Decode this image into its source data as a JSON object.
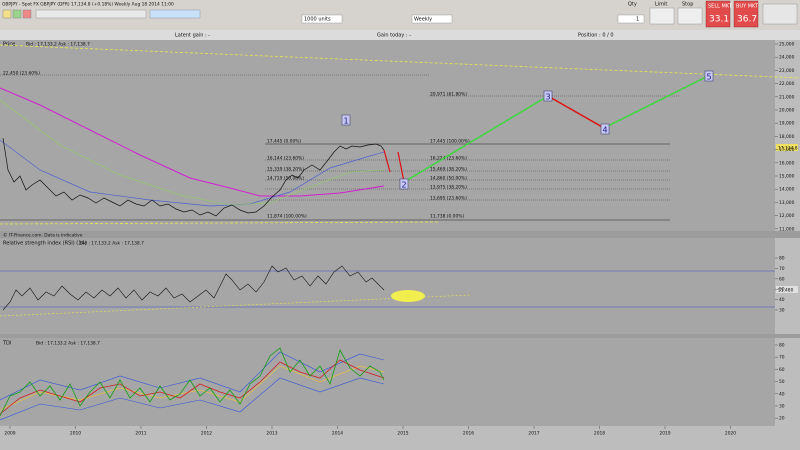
{
  "header": {
    "info": "GBPJPY - Spot FX GBPJPY (DFR)   17,134.8 (+0.18%)   Weekly  Aug 18 2014 11:00"
  },
  "toolbar": {
    "units": "1000 units",
    "period": "Weekly",
    "qty_label": "Qty",
    "qty": "1",
    "limit_label": "Limit",
    "stop_label": "Stop",
    "sell_label": "SELL MKT",
    "sell_price": "33.1",
    "buy_label": "BUY MKT",
    "buy_price": "36.7"
  },
  "info_bar": {
    "latent_gain": "Latent gain : -",
    "gain_today": "Gain today : -",
    "position": "Position : 0 / 0"
  },
  "price_panel": {
    "label": "Price",
    "bid_ask": "Bid : 17,133.2 Ask : 17,138.7",
    "fib_labels": [
      "22,450 (23.60%)",
      "20,971 (61.80%)",
      "17,445 (0.00%)",
      "17,445 (100.00%)",
      "16,144 (23.60%)",
      "16,224 (23.60%)",
      "15,339 (38.20%)",
      "15,469 (38.20%)",
      "14,719 (50.00%)",
      "14,860 (50.00%)",
      "13,975 (38.20%)",
      "13,695 (23.60%)",
      "11,874 (100.00%)",
      "11,738 (0.00%)"
    ],
    "waves": [
      "1",
      "2",
      "3",
      "4",
      "5"
    ],
    "current_price": "17,134.8",
    "credit": "© IT-Finance.com. Data is indicative",
    "yticks": [
      "25,000",
      "24,000",
      "23,000",
      "22,000",
      "21,000",
      "20,000",
      "19,000",
      "18,000",
      "17,000",
      "16,000",
      "15,000",
      "14,000",
      "13,000",
      "12,000",
      "11,000"
    ]
  },
  "rsi_panel": {
    "label": "Relative strength index (RSI) (14)",
    "bid_ask": "Bid : 17,133.2 Ask : 17,138.7",
    "current_value": "51.480",
    "yticks": [
      "80",
      "70",
      "60",
      "50",
      "40",
      "30"
    ]
  },
  "tdi_panel": {
    "label": "TDI",
    "bid_ask": "Bid : 17,133.2 Ask : 17,138.7",
    "yticks": [
      "80",
      "70",
      "60",
      "50",
      "40",
      "30",
      "20"
    ]
  },
  "time_axis": {
    "years": [
      "2009",
      "2010",
      "2011",
      "2012",
      "2013",
      "2014",
      "2015",
      "2016",
      "2017",
      "2018",
      "2019",
      "2020"
    ]
  }
}
